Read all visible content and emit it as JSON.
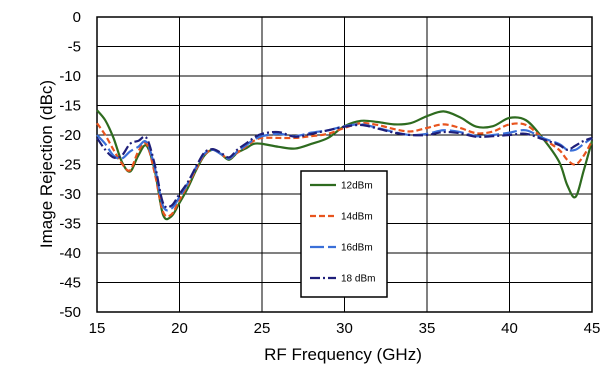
{
  "chart_data": {
    "type": "line",
    "title": "",
    "xlabel": "RF Frequency (GHz)",
    "ylabel": "Image Rejection (dBc)",
    "xlim": [
      15,
      45
    ],
    "ylim": [
      -50,
      0
    ],
    "xticks": [
      15,
      20,
      25,
      30,
      35,
      40,
      45
    ],
    "yticks": [
      0,
      -5,
      -10,
      -15,
      -20,
      -25,
      -30,
      -35,
      -40,
      -45,
      -50
    ],
    "grid": true,
    "legend_position": "center-bottom",
    "series": [
      {
        "name": "12dBm",
        "color": "#2e6b1f",
        "dash": "solid",
        "x": [
          15,
          15.5,
          16,
          16.5,
          17,
          17.5,
          18,
          18.5,
          19,
          19.5,
          20,
          20.5,
          21,
          21.5,
          22,
          22.5,
          23,
          23.5,
          24,
          24.5,
          25,
          26,
          27,
          28,
          29,
          30,
          31,
          32,
          33,
          34,
          35,
          36,
          37,
          38,
          39,
          40,
          41,
          42,
          43,
          43.5,
          44,
          44.5,
          45
        ],
        "y": [
          -15.8,
          -17.5,
          -20.5,
          -24.5,
          -26.2,
          -23.5,
          -21.8,
          -26,
          -33.5,
          -33.8,
          -31.5,
          -29,
          -26,
          -23.5,
          -22.5,
          -23.2,
          -24.2,
          -23,
          -22.3,
          -21.5,
          -21.5,
          -22,
          -22.3,
          -21.5,
          -20.5,
          -18.5,
          -17.6,
          -17.8,
          -18.2,
          -18,
          -16.8,
          -16,
          -17,
          -18.6,
          -18.5,
          -17.1,
          -17.5,
          -20.5,
          -24.5,
          -28.5,
          -30.5,
          -26,
          -21
        ]
      },
      {
        "name": "14dBm",
        "color": "#e8541e",
        "dash": "6,3",
        "x": [
          15,
          15.5,
          16,
          16.5,
          17,
          17.5,
          18,
          18.5,
          19,
          19.5,
          20,
          20.5,
          21,
          21.5,
          22,
          22.5,
          23,
          23.5,
          24,
          24.5,
          25,
          26,
          27,
          28,
          29,
          30,
          31,
          32,
          33,
          34,
          35,
          36,
          37,
          38,
          39,
          40,
          41,
          42,
          43,
          43.5,
          44,
          44.5,
          45
        ],
        "y": [
          -18,
          -20,
          -22.5,
          -24.8,
          -26,
          -22.8,
          -21.5,
          -26.5,
          -33,
          -33.5,
          -31,
          -28.5,
          -25.8,
          -23.4,
          -22.5,
          -23.2,
          -24,
          -23,
          -22,
          -21,
          -20.5,
          -20.5,
          -20.5,
          -20.2,
          -19.8,
          -18.8,
          -18,
          -18.3,
          -19,
          -19.4,
          -18.8,
          -18.2,
          -18.8,
          -19.7,
          -19.4,
          -18.2,
          -18.3,
          -20.5,
          -22.5,
          -24.2,
          -25,
          -23.5,
          -21
        ]
      },
      {
        "name": "16dBm",
        "color": "#3a6fd8",
        "dash": "14,4",
        "x": [
          15,
          15.5,
          16,
          16.5,
          17,
          17.5,
          18,
          18.5,
          19,
          19.5,
          20,
          20.5,
          21,
          21.5,
          22,
          22.5,
          23,
          23.5,
          24,
          24.5,
          25,
          26,
          27,
          28,
          29,
          30,
          31,
          32,
          33,
          34,
          35,
          36,
          37,
          38,
          39,
          40,
          41,
          42,
          43,
          43.5,
          44,
          44.5,
          45
        ],
        "y": [
          -20,
          -21.5,
          -23.5,
          -24,
          -22.8,
          -22,
          -21.2,
          -25.5,
          -32,
          -32.5,
          -30.5,
          -28.2,
          -25.5,
          -23.2,
          -22.5,
          -23.2,
          -24,
          -22.8,
          -21.8,
          -20.8,
          -20.2,
          -19.8,
          -20.2,
          -19.6,
          -19.2,
          -18.5,
          -18.2,
          -18.8,
          -19.5,
          -20,
          -19.8,
          -19.2,
          -19.5,
          -20.2,
          -20,
          -19.6,
          -19.2,
          -20.5,
          -21.5,
          -22.5,
          -22.5,
          -21.5,
          -20.5
        ]
      },
      {
        "name": "18 dBm",
        "color": "#1f1f7a",
        "dash": "10,3,2,3",
        "x": [
          15,
          15.5,
          16,
          16.5,
          17,
          17.5,
          18,
          18.5,
          19,
          19.5,
          20,
          20.5,
          21,
          21.5,
          22,
          22.5,
          23,
          23.5,
          24,
          24.5,
          25,
          26,
          27,
          28,
          29,
          30,
          31,
          32,
          33,
          34,
          35,
          36,
          37,
          38,
          39,
          40,
          41,
          42,
          43,
          43.5,
          44,
          44.5,
          45
        ],
        "y": [
          -20.5,
          -22.5,
          -23.8,
          -23.5,
          -21.5,
          -21,
          -20.5,
          -25,
          -31.5,
          -32,
          -30,
          -28,
          -25.4,
          -23,
          -22.4,
          -23,
          -23.8,
          -22.5,
          -21.5,
          -20.5,
          -19.8,
          -19.5,
          -20.3,
          -19.8,
          -19.2,
          -18.6,
          -18.3,
          -18.9,
          -19.6,
          -20,
          -20,
          -19.5,
          -19.7,
          -20.3,
          -20.2,
          -20,
          -19.8,
          -20.7,
          -21.7,
          -22.5,
          -21.8,
          -21,
          -20.5
        ]
      }
    ]
  }
}
